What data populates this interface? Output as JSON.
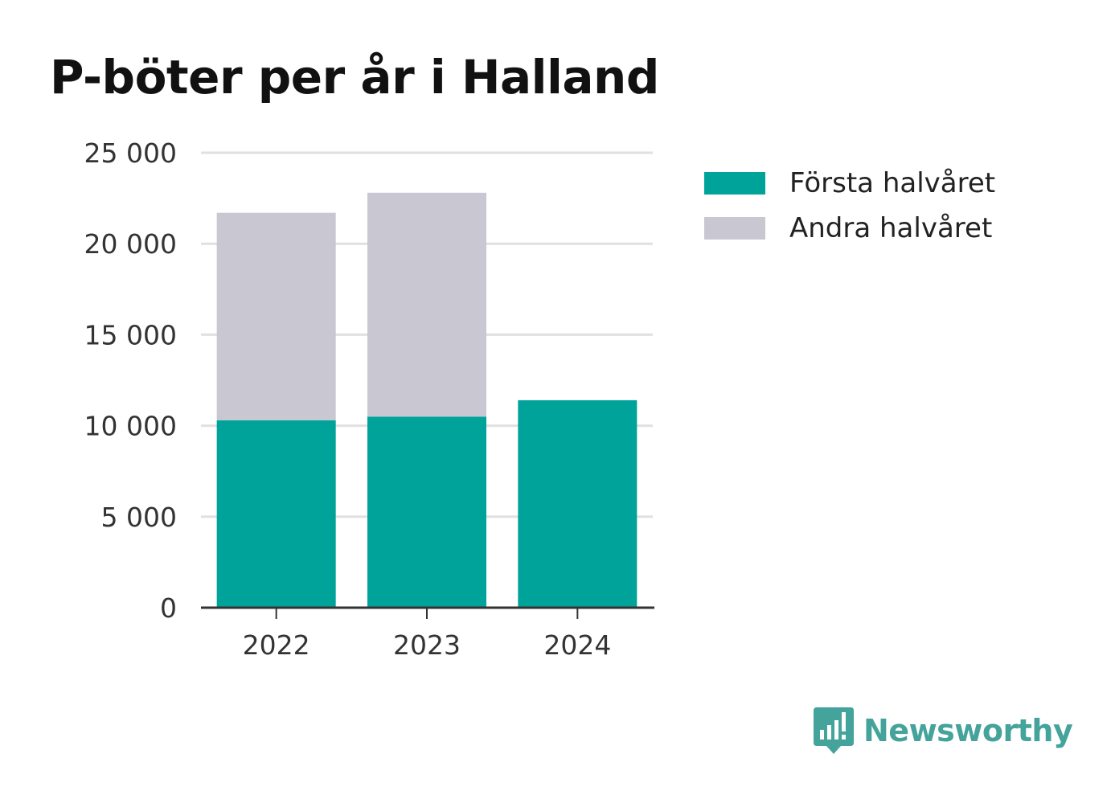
{
  "title": "P-böter per år i Halland",
  "brand": {
    "name": "Newsworthy",
    "icon": "newsworthy-logo-icon",
    "color": "#44a39b"
  },
  "chart_data": {
    "type": "bar",
    "stacked": true,
    "title": "P-böter per år i Halland",
    "categories": [
      "2022",
      "2023",
      "2024"
    ],
    "series": [
      {
        "name": "Första halvåret",
        "values": [
          10300,
          10500,
          11400
        ],
        "color": "#00a39a"
      },
      {
        "name": "Andra halvåret",
        "values": [
          11400,
          12300,
          0
        ],
        "color": "#c8c7d2"
      }
    ],
    "ylim": [
      0,
      25000
    ],
    "yticks": [
      0,
      5000,
      10000,
      15000,
      20000,
      25000
    ],
    "ytick_labels": [
      "0",
      "5 000",
      "10 000",
      "15 000",
      "20 000",
      "25 000"
    ],
    "grid": true,
    "legend": "right"
  }
}
